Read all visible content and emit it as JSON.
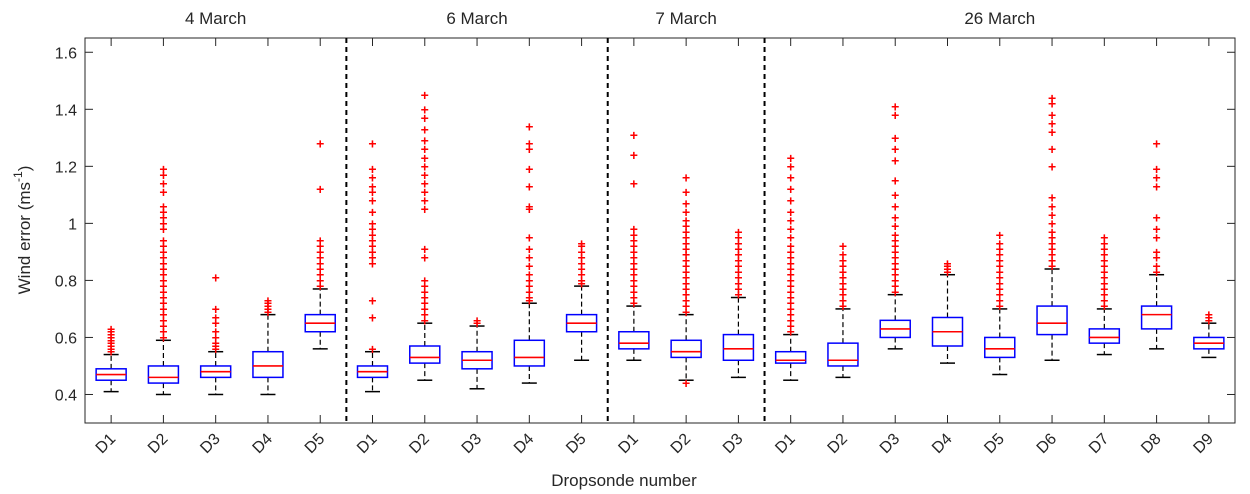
{
  "chart_data": {
    "type": "box",
    "xlabel": "Dropsonde number",
    "ylabel": "Wind error (ms",
    "ylabel_superscript": "-1",
    "ylabel_close": ")",
    "ylim": [
      0.3,
      1.65
    ],
    "yticks": [
      0.4,
      0.6,
      0.8,
      1.0,
      1.2,
      1.4,
      1.6
    ],
    "ytick_labels": [
      "0.4",
      "0.6",
      "0.8",
      "1",
      "1.2",
      "1.4",
      "1.6"
    ],
    "grid": false,
    "groups": [
      {
        "label": "4 March",
        "start": 0,
        "count": 5
      },
      {
        "label": "6 March",
        "start": 5,
        "count": 5
      },
      {
        "label": "7 March",
        "start": 10,
        "count": 3
      },
      {
        "label": "26 March",
        "start": 13,
        "count": 9
      }
    ],
    "boxes": [
      {
        "label": "D1",
        "whisker_low": 0.41,
        "q1": 0.45,
        "median": 0.47,
        "q3": 0.49,
        "whisker_high": 0.54,
        "outliers": [
          0.55,
          0.56,
          0.57,
          0.58,
          0.59,
          0.6,
          0.61,
          0.62,
          0.63
        ]
      },
      {
        "label": "D2",
        "whisker_low": 0.4,
        "q1": 0.44,
        "median": 0.46,
        "q3": 0.5,
        "whisker_high": 0.59,
        "outliers": [
          0.6,
          0.62,
          0.64,
          0.66,
          0.68,
          0.7,
          0.72,
          0.74,
          0.76,
          0.78,
          0.8,
          0.82,
          0.84,
          0.86,
          0.88,
          0.9,
          0.92,
          0.94,
          0.98,
          1.0,
          1.02,
          1.04,
          1.06,
          1.11,
          1.14,
          1.17,
          1.19
        ]
      },
      {
        "label": "D3",
        "whisker_low": 0.4,
        "q1": 0.46,
        "median": 0.48,
        "q3": 0.5,
        "whisker_high": 0.55,
        "outliers": [
          0.56,
          0.57,
          0.58,
          0.6,
          0.62,
          0.65,
          0.67,
          0.7,
          0.81
        ]
      },
      {
        "label": "D4",
        "whisker_low": 0.4,
        "q1": 0.46,
        "median": 0.5,
        "q3": 0.55,
        "whisker_high": 0.68,
        "outliers": [
          0.69,
          0.7,
          0.71,
          0.72,
          0.73
        ]
      },
      {
        "label": "D5",
        "whisker_low": 0.56,
        "q1": 0.62,
        "median": 0.65,
        "q3": 0.68,
        "whisker_high": 0.77,
        "outliers": [
          0.78,
          0.8,
          0.82,
          0.84,
          0.86,
          0.88,
          0.9,
          0.92,
          0.94,
          1.12,
          1.28
        ]
      },
      {
        "label": "D1",
        "whisker_low": 0.41,
        "q1": 0.46,
        "median": 0.48,
        "q3": 0.5,
        "whisker_high": 0.55,
        "outliers": [
          0.56,
          0.67,
          0.73,
          0.86,
          0.88,
          0.9,
          0.92,
          0.94,
          0.96,
          0.98,
          1.0,
          1.04,
          1.08,
          1.11,
          1.13,
          1.16,
          1.19,
          1.28
        ]
      },
      {
        "label": "D2",
        "whisker_low": 0.45,
        "q1": 0.51,
        "median": 0.53,
        "q3": 0.57,
        "whisker_high": 0.65,
        "outliers": [
          0.66,
          0.68,
          0.7,
          0.72,
          0.74,
          0.76,
          0.78,
          0.8,
          0.88,
          0.91,
          1.05,
          1.08,
          1.11,
          1.14,
          1.17,
          1.2,
          1.23,
          1.26,
          1.29,
          1.33,
          1.37,
          1.4,
          1.45
        ]
      },
      {
        "label": "D3",
        "whisker_low": 0.42,
        "q1": 0.49,
        "median": 0.52,
        "q3": 0.55,
        "whisker_high": 0.64,
        "outliers": [
          0.65,
          0.66
        ]
      },
      {
        "label": "D4",
        "whisker_low": 0.44,
        "q1": 0.5,
        "median": 0.53,
        "q3": 0.59,
        "whisker_high": 0.72,
        "outliers": [
          0.73,
          0.74,
          0.76,
          0.78,
          0.8,
          0.82,
          0.85,
          0.88,
          0.91,
          0.95,
          1.05,
          1.06,
          1.13,
          1.19,
          1.26,
          1.28,
          1.34
        ]
      },
      {
        "label": "D5",
        "whisker_low": 0.52,
        "q1": 0.62,
        "median": 0.65,
        "q3": 0.68,
        "whisker_high": 0.78,
        "outliers": [
          0.79,
          0.8,
          0.82,
          0.84,
          0.86,
          0.88,
          0.9,
          0.92,
          0.93
        ]
      },
      {
        "label": "D1",
        "whisker_low": 0.52,
        "q1": 0.56,
        "median": 0.58,
        "q3": 0.62,
        "whisker_high": 0.71,
        "outliers": [
          0.72,
          0.74,
          0.76,
          0.78,
          0.8,
          0.82,
          0.84,
          0.86,
          0.88,
          0.9,
          0.92,
          0.94,
          0.96,
          0.98,
          1.14,
          1.24,
          1.31
        ]
      },
      {
        "label": "D2",
        "whisker_low": 0.45,
        "q1": 0.53,
        "median": 0.55,
        "q3": 0.59,
        "whisker_high": 0.68,
        "outliers": [
          0.44,
          0.69,
          0.71,
          0.73,
          0.75,
          0.77,
          0.79,
          0.81,
          0.83,
          0.85,
          0.87,
          0.89,
          0.91,
          0.93,
          0.95,
          0.97,
          0.99,
          1.01,
          1.04,
          1.07,
          1.11,
          1.16
        ]
      },
      {
        "label": "D3",
        "whisker_low": 0.46,
        "q1": 0.52,
        "median": 0.56,
        "q3": 0.61,
        "whisker_high": 0.74,
        "outliers": [
          0.75,
          0.77,
          0.79,
          0.81,
          0.83,
          0.85,
          0.87,
          0.89,
          0.91,
          0.93,
          0.95,
          0.97
        ]
      },
      {
        "label": "D1",
        "whisker_low": 0.45,
        "q1": 0.51,
        "median": 0.52,
        "q3": 0.55,
        "whisker_high": 0.61,
        "outliers": [
          0.62,
          0.64,
          0.66,
          0.68,
          0.7,
          0.72,
          0.74,
          0.76,
          0.78,
          0.8,
          0.82,
          0.84,
          0.86,
          0.88,
          0.9,
          0.92,
          0.95,
          0.98,
          1.01,
          1.04,
          1.08,
          1.12,
          1.16,
          1.2,
          1.23
        ]
      },
      {
        "label": "D2",
        "whisker_low": 0.46,
        "q1": 0.5,
        "median": 0.52,
        "q3": 0.58,
        "whisker_high": 0.7,
        "outliers": [
          0.71,
          0.73,
          0.75,
          0.77,
          0.79,
          0.81,
          0.83,
          0.85,
          0.87,
          0.89,
          0.92
        ]
      },
      {
        "label": "D3",
        "whisker_low": 0.56,
        "q1": 0.6,
        "median": 0.63,
        "q3": 0.66,
        "whisker_high": 0.75,
        "outliers": [
          0.76,
          0.78,
          0.8,
          0.82,
          0.84,
          0.86,
          0.88,
          0.9,
          0.92,
          0.94,
          0.96,
          0.99,
          1.02,
          1.06,
          1.1,
          1.15,
          1.22,
          1.26,
          1.3,
          1.38,
          1.41
        ]
      },
      {
        "label": "D4",
        "whisker_low": 0.51,
        "q1": 0.57,
        "median": 0.62,
        "q3": 0.67,
        "whisker_high": 0.82,
        "outliers": [
          0.83,
          0.84,
          0.85,
          0.86
        ]
      },
      {
        "label": "D5",
        "whisker_low": 0.47,
        "q1": 0.53,
        "median": 0.56,
        "q3": 0.6,
        "whisker_high": 0.7,
        "outliers": [
          0.71,
          0.73,
          0.75,
          0.77,
          0.79,
          0.81,
          0.83,
          0.85,
          0.87,
          0.89,
          0.91,
          0.93,
          0.96
        ]
      },
      {
        "label": "D6",
        "whisker_low": 0.52,
        "q1": 0.61,
        "median": 0.65,
        "q3": 0.71,
        "whisker_high": 0.84,
        "outliers": [
          0.85,
          0.87,
          0.89,
          0.91,
          0.93,
          0.95,
          0.97,
          1.0,
          1.03,
          1.06,
          1.09,
          1.2,
          1.26,
          1.32,
          1.35,
          1.38,
          1.42,
          1.44
        ]
      },
      {
        "label": "D7",
        "whisker_low": 0.54,
        "q1": 0.58,
        "median": 0.6,
        "q3": 0.63,
        "whisker_high": 0.7,
        "outliers": [
          0.71,
          0.73,
          0.75,
          0.77,
          0.79,
          0.81,
          0.83,
          0.85,
          0.87,
          0.89,
          0.91,
          0.93,
          0.95
        ]
      },
      {
        "label": "D8",
        "whisker_low": 0.56,
        "q1": 0.63,
        "median": 0.68,
        "q3": 0.71,
        "whisker_high": 0.82,
        "outliers": [
          0.83,
          0.85,
          0.88,
          0.9,
          0.95,
          0.98,
          1.02,
          1.13,
          1.16,
          1.19,
          1.28
        ]
      },
      {
        "label": "D9",
        "whisker_low": 0.53,
        "q1": 0.56,
        "median": 0.58,
        "q3": 0.6,
        "whisker_high": 0.65,
        "outliers": [
          0.66,
          0.67,
          0.68
        ]
      }
    ],
    "colors": {
      "box": "#0000ff",
      "median": "#ff0000",
      "outlier": "#ff0000",
      "whisker": "#000000",
      "axis": "#262626"
    }
  }
}
